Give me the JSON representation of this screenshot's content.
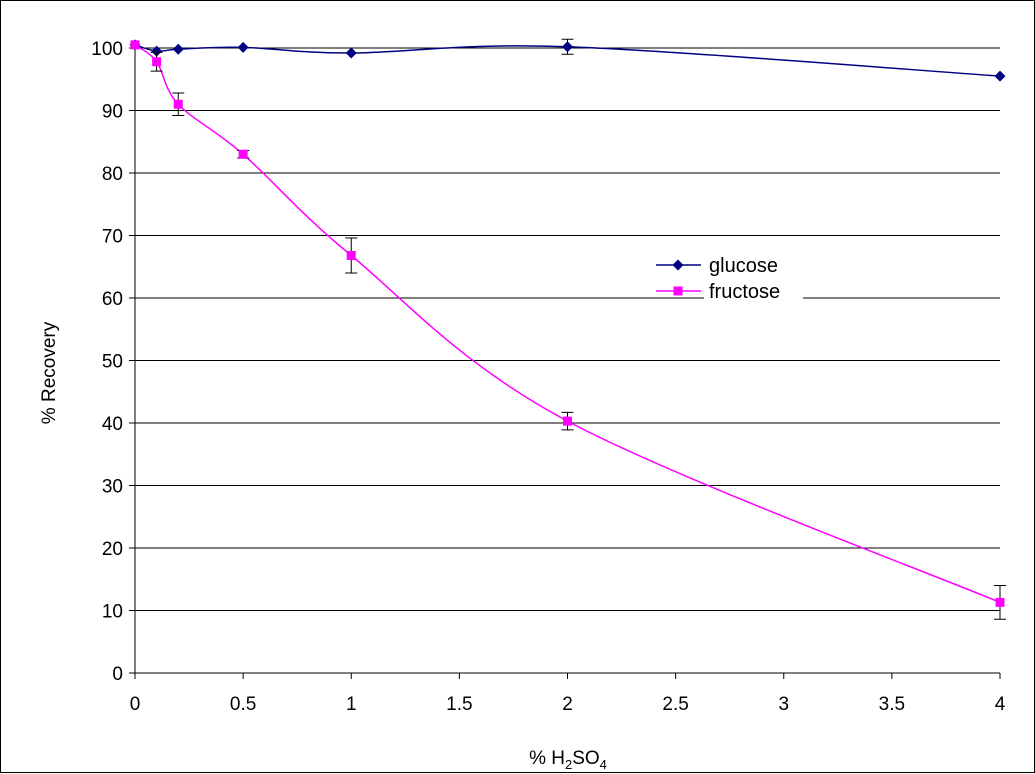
{
  "chart_data": {
    "type": "line",
    "title": "",
    "xlabel": {
      "prefix": "% H",
      "sub1": "2",
      "mid": "SO",
      "sub2": "4"
    },
    "ylabel": "% Recovery",
    "xlim": [
      0,
      4
    ],
    "ylim": [
      0,
      100
    ],
    "xticks": [
      "0",
      "0.5",
      "1",
      "1.5",
      "2",
      "2.5",
      "3",
      "3.5",
      "4"
    ],
    "yticks": [
      "0",
      "10",
      "20",
      "30",
      "40",
      "50",
      "60",
      "70",
      "80",
      "90",
      "100"
    ],
    "grid": "horizontal",
    "legend_position": "right-middle",
    "series": [
      {
        "name": "glucose",
        "color": "#000080",
        "marker": "diamond",
        "x": [
          0,
          0.1,
          0.2,
          0.5,
          1,
          2,
          4
        ],
        "y": [
          100.5,
          99.5,
          99.8,
          100.1,
          99.2,
          100.2,
          95.5
        ],
        "error": [
          0,
          0,
          0,
          0,
          0,
          1.2,
          0
        ]
      },
      {
        "name": "fructose",
        "color": "#ff00ff",
        "marker": "square",
        "x": [
          0,
          0.1,
          0.2,
          0.5,
          1,
          2,
          4
        ],
        "y": [
          100.5,
          97.8,
          91,
          83,
          66.8,
          40.3,
          11.3
        ],
        "error": [
          0,
          1.5,
          1.8,
          0.6,
          2.8,
          1.4,
          2.7
        ]
      }
    ]
  }
}
